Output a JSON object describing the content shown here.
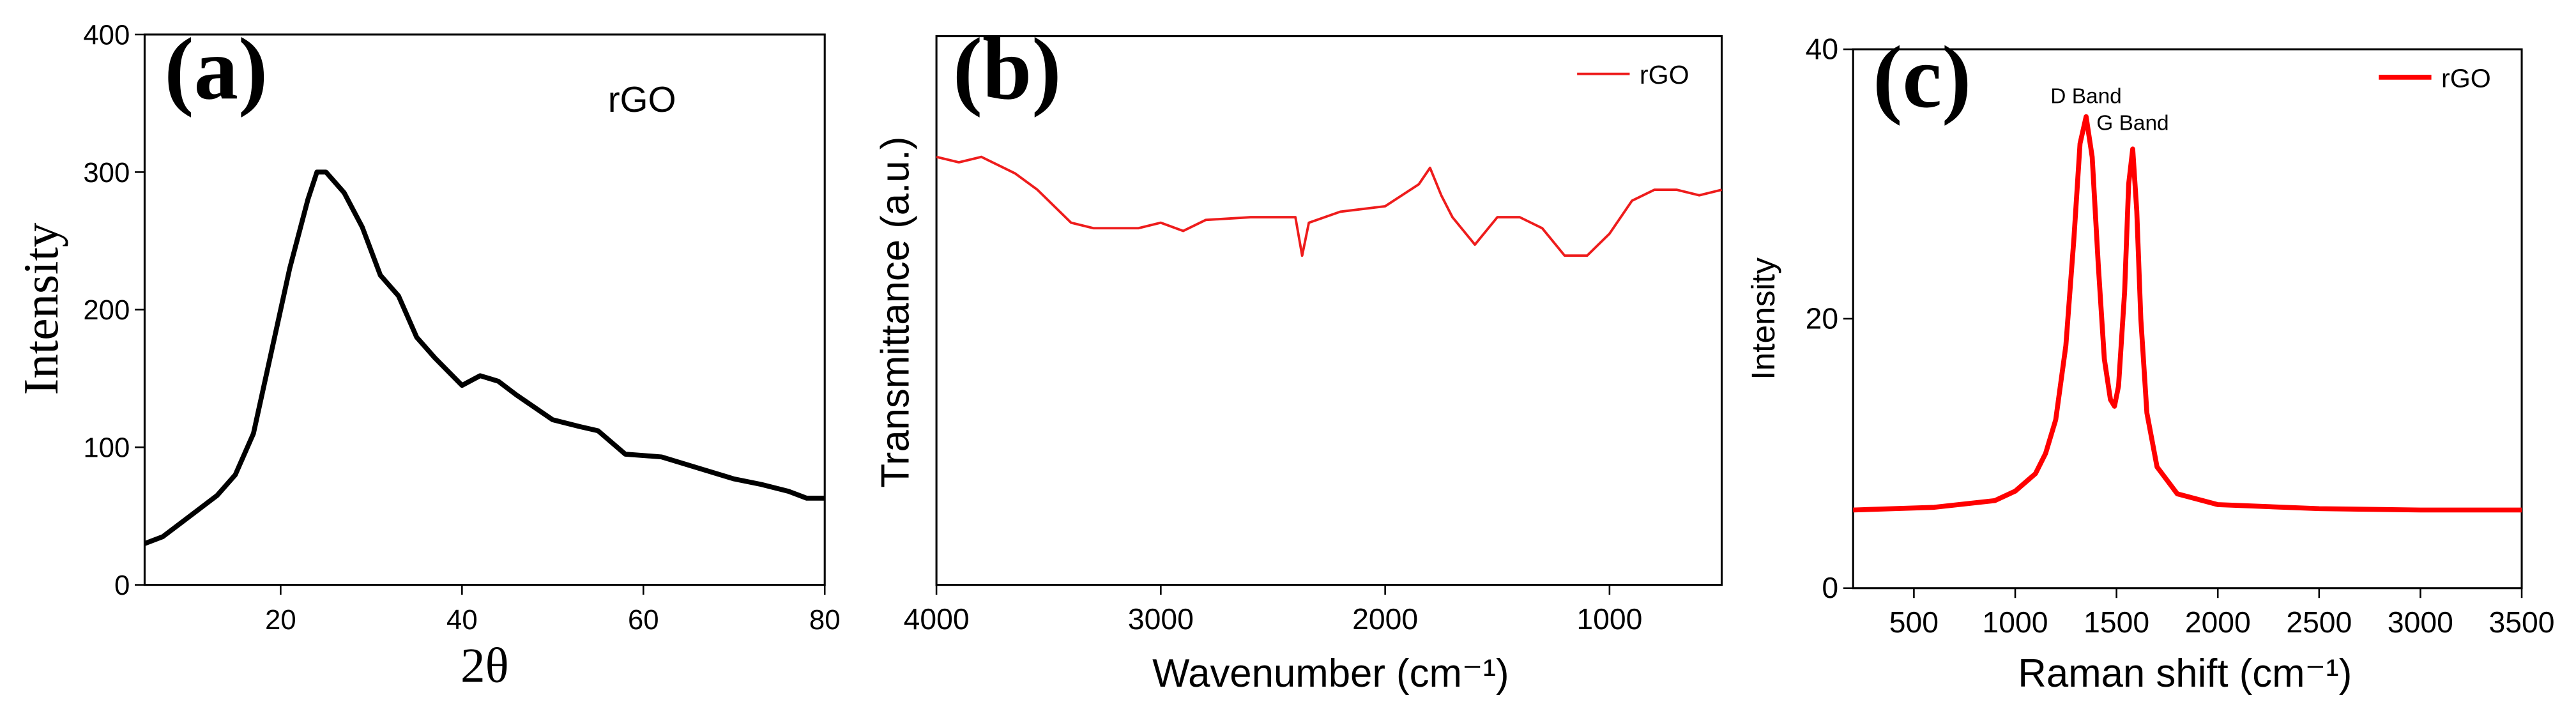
{
  "chart_data": [
    {
      "type": "line",
      "panel_label": "(a)",
      "annotation": "rGO",
      "x_label": "2θ",
      "y_label": "Intensity",
      "x": [
        5,
        7,
        10,
        13,
        15,
        17,
        19,
        21,
        23,
        24,
        25,
        27,
        29,
        31,
        33,
        35,
        37,
        40,
        42,
        44,
        46,
        50,
        53,
        55,
        58,
        62,
        66,
        70,
        73,
        76,
        78,
        80
      ],
      "series": [
        {
          "color": "#000000",
          "values": [
            30,
            35,
            50,
            65,
            80,
            110,
            170,
            230,
            280,
            300,
            300,
            285,
            260,
            225,
            210,
            180,
            165,
            145,
            152,
            148,
            138,
            120,
            115,
            112,
            95,
            93,
            85,
            77,
            73,
            68,
            63,
            63
          ]
        }
      ],
      "xlim": [
        5,
        80
      ],
      "xticks": [
        20,
        40,
        60,
        80
      ],
      "ylim": [
        0,
        400
      ],
      "yticks": [
        0,
        100,
        200,
        300,
        400
      ]
    },
    {
      "type": "line",
      "panel_label": "(b)",
      "x_label": "Wavenumber (cm⁻¹)",
      "y_label": "Transmittance (a.u.)",
      "x": [
        4000,
        3900,
        3800,
        3700,
        3650,
        3550,
        3500,
        3400,
        3300,
        3100,
        3000,
        2900,
        2800,
        2600,
        2400,
        2370,
        2340,
        2200,
        2000,
        1850,
        1800,
        1750,
        1700,
        1600,
        1500,
        1400,
        1300,
        1200,
        1100,
        1000,
        900,
        800,
        700,
        600,
        500
      ],
      "series": [
        {
          "name": "rGO",
          "color": "#ee1c1c",
          "values": [
            78,
            77,
            78,
            76,
            75,
            72,
            70,
            66,
            65,
            65,
            66,
            64.5,
            66.5,
            67,
            67,
            60,
            66,
            68,
            69,
            73,
            76,
            71,
            67,
            62,
            67,
            67,
            65,
            60,
            60,
            64,
            70,
            72,
            72,
            71,
            72
          ]
        }
      ],
      "xlim": [
        4000,
        500
      ],
      "xticks": [
        4000,
        3000,
        2000,
        1000
      ],
      "ylim": [
        0,
        100
      ],
      "legend": "upper right"
    },
    {
      "type": "line",
      "panel_label": "(c)",
      "x_label": "Raman shift (cm⁻¹)",
      "y_label": "Intensity",
      "annotations": [
        {
          "text": "D Band",
          "x": 1350,
          "y": 36
        },
        {
          "text": "G Band",
          "x": 1580,
          "y": 34
        }
      ],
      "x": [
        200,
        600,
        900,
        1000,
        1100,
        1150,
        1200,
        1250,
        1290,
        1320,
        1350,
        1380,
        1410,
        1440,
        1470,
        1490,
        1510,
        1540,
        1560,
        1580,
        1600,
        1620,
        1650,
        1700,
        1800,
        2000,
        2500,
        3000,
        3500
      ],
      "series": [
        {
          "name": "rGO",
          "color": "#ff0000",
          "values": [
            5.8,
            6,
            6.5,
            7.2,
            8.5,
            10,
            12.5,
            18,
            26,
            33,
            35,
            32,
            24,
            17,
            14,
            13.5,
            15,
            22,
            30,
            32.6,
            28,
            20,
            13,
            9,
            7,
            6.2,
            5.9,
            5.8,
            5.8
          ]
        }
      ],
      "xlim": [
        200,
        3500
      ],
      "xticks": [
        500,
        1000,
        1500,
        2000,
        2500,
        3000,
        3500
      ],
      "ylim": [
        0,
        40
      ],
      "yticks": [
        0,
        20,
        40
      ],
      "legend": "upper right"
    }
  ]
}
